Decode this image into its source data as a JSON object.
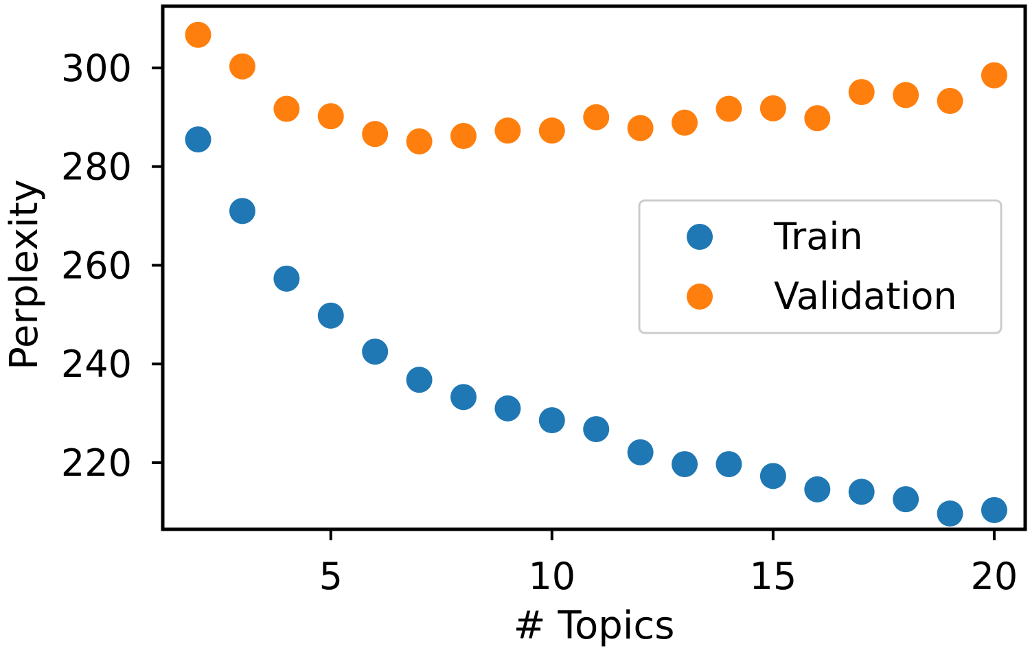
{
  "chart_data": {
    "type": "scatter",
    "xlabel": "# Topics",
    "ylabel": "Perplexity",
    "xlim": [
      1.2,
      20.7
    ],
    "ylim": [
      206.5,
      312.5
    ],
    "xticks": [
      5,
      10,
      15,
      20
    ],
    "yticks": [
      220,
      240,
      260,
      280,
      300
    ],
    "grid": false,
    "legend_position": "center-right",
    "series": [
      {
        "name": "Train",
        "color": "#1f77b4",
        "x": [
          2,
          3,
          4,
          5,
          6,
          7,
          8,
          9,
          10,
          11,
          12,
          13,
          14,
          15,
          16,
          17,
          18,
          19,
          20
        ],
        "y": [
          285.5,
          271.0,
          257.3,
          249.8,
          242.5,
          236.8,
          233.3,
          231.0,
          228.6,
          226.8,
          222.1,
          219.7,
          219.7,
          217.3,
          214.6,
          214.1,
          212.6,
          209.7,
          210.4
        ]
      },
      {
        "name": "Validation",
        "color": "#ff7f0e",
        "x": [
          2,
          3,
          4,
          5,
          6,
          7,
          8,
          9,
          10,
          11,
          12,
          13,
          14,
          15,
          16,
          17,
          18,
          19,
          20
        ],
        "y": [
          306.7,
          300.3,
          291.7,
          290.2,
          286.6,
          285.1,
          286.2,
          287.3,
          287.3,
          290.0,
          287.8,
          288.9,
          291.7,
          291.8,
          289.8,
          295.1,
          294.5,
          293.3,
          298.5
        ]
      }
    ]
  }
}
